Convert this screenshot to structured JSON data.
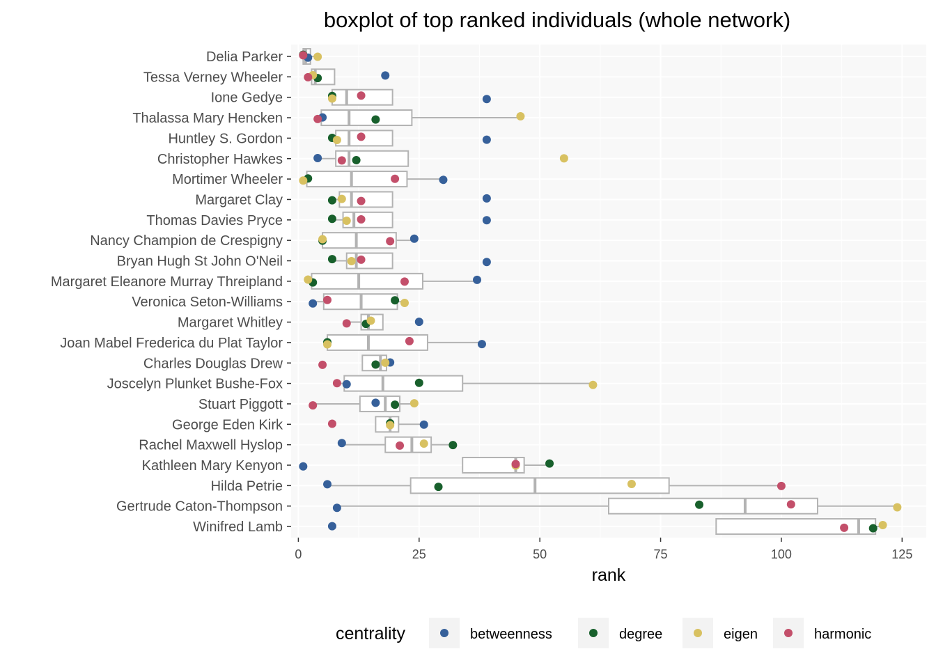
{
  "chart_data": {
    "type": "boxplot",
    "title": "boxplot of top ranked individuals (whole network)",
    "xlabel": "rank",
    "ylabel": "",
    "xlim": [
      -1.5,
      130
    ],
    "xticks": [
      0,
      25,
      50,
      75,
      100,
      125
    ],
    "grid": true,
    "legend": {
      "title": "centrality",
      "position": "bottom",
      "entries": [
        "betweenness",
        "degree",
        "eigen",
        "harmonic"
      ]
    },
    "colors": {
      "betweenness": "#36609a",
      "degree": "#18602c",
      "eigen": "#d8c161",
      "harmonic": "#c34f6a",
      "box": "#b3b3b3",
      "panel": "#f8f8f8",
      "grid": "#ffffff"
    },
    "categories": [
      "Delia Parker",
      "Tessa Verney Wheeler",
      "Ione Gedye",
      "Thalassa Mary Hencken",
      "Huntley S. Gordon",
      "Christopher Hawkes",
      "Mortimer Wheeler",
      "Margaret Clay",
      "Thomas Davies Pryce",
      "Nancy Champion de Crespigny",
      "Bryan Hugh St John O'Neil",
      "Margaret Eleanore Murray Threipland",
      "Veronica Seton-Williams",
      "Margaret Whitley",
      "Joan Mabel Frederica du Plat Taylor",
      "Charles Douglas Drew",
      "Joscelyn Plunket Bushe-Fox",
      "Stuart Piggott",
      "George Eden Kirk",
      "Rachel Maxwell Hyslop",
      "Kathleen Mary Kenyon",
      "Hilda Petrie",
      "Gertrude Caton-Thompson",
      "Winifred Lamb"
    ],
    "series": [
      {
        "name": "betweenness",
        "values": [
          2,
          18,
          39,
          5,
          39,
          4,
          30,
          39,
          39,
          24,
          39,
          37,
          3,
          25,
          38,
          19,
          10,
          16,
          26,
          9,
          1,
          6,
          8,
          7
        ]
      },
      {
        "name": "degree",
        "values": [
          1,
          4,
          7,
          16,
          7,
          12,
          2,
          7,
          7,
          5,
          7,
          3,
          20,
          14,
          6,
          16,
          25,
          20,
          19,
          32,
          52,
          29,
          83,
          119
        ]
      },
      {
        "name": "eigen",
        "values": [
          4,
          3,
          7,
          46,
          8,
          55,
          1,
          9,
          10,
          5,
          11,
          2,
          22,
          15,
          6,
          18,
          61,
          24,
          19,
          26,
          45,
          69,
          124,
          121
        ]
      },
      {
        "name": "harmonic",
        "values": [
          1,
          2,
          13,
          4,
          13,
          9,
          20,
          13,
          13,
          19,
          13,
          22,
          6,
          10,
          23,
          5,
          8,
          3,
          7,
          21,
          45,
          100,
          102,
          113
        ]
      }
    ]
  }
}
